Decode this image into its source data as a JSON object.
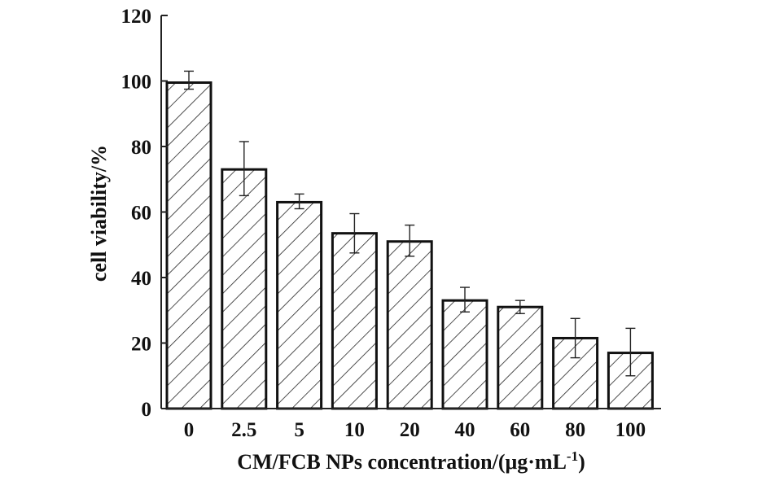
{
  "chart_data": {
    "type": "bar",
    "categories": [
      "0",
      "2.5",
      "5",
      "10",
      "20",
      "40",
      "60",
      "80",
      "100"
    ],
    "values": [
      99.5,
      73,
      63,
      53.5,
      51,
      33,
      31,
      21.5,
      17
    ],
    "error_low": [
      97.5,
      65,
      61,
      47.5,
      46.5,
      29.5,
      29,
      15.5,
      10
    ],
    "error_high": [
      103,
      81.5,
      65.5,
      59.5,
      56,
      37,
      33,
      27.5,
      24.5
    ],
    "ylim": [
      0,
      120
    ],
    "yticks": [
      0,
      20,
      40,
      60,
      80,
      100,
      120
    ],
    "ylabel": "cell viability/%",
    "xlabel": "CM/FCB NPs concentration/(μg·mL",
    "xlabel_sup": "-1",
    "xlabel_end": ")",
    "bar_fill": "hatched",
    "bar_color": "#111111",
    "grid": false
  }
}
